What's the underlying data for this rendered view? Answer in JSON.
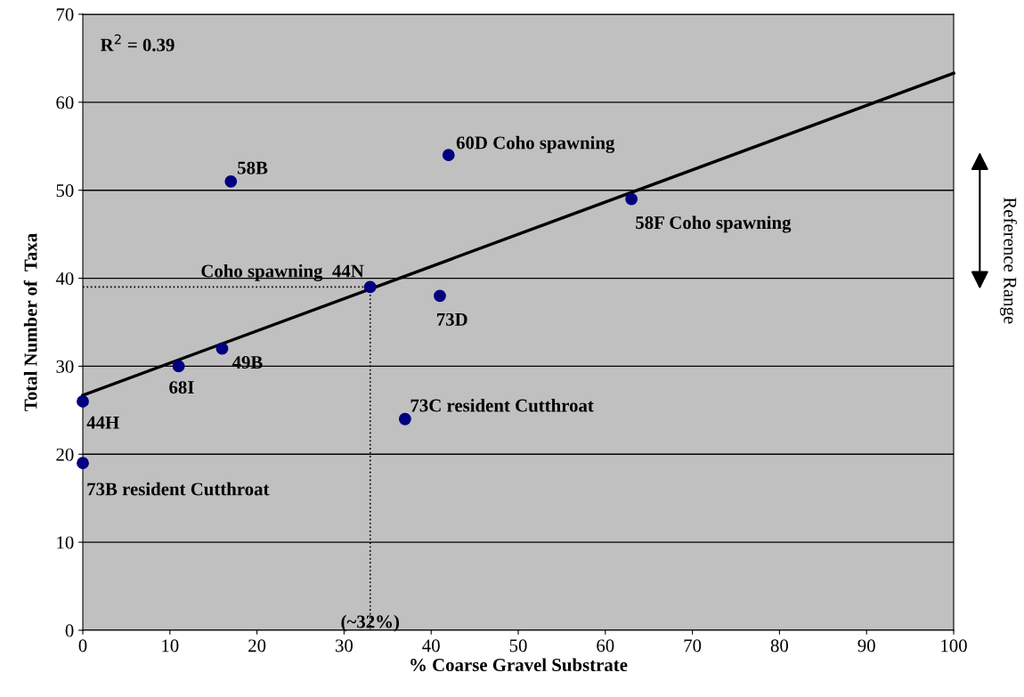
{
  "chart_data": {
    "type": "scatter",
    "xlabel": "% Coarse Gravel Substrate",
    "ylabel": "Total Number of  Taxa",
    "xlim": [
      0,
      100
    ],
    "ylim": [
      0,
      70
    ],
    "xticks": [
      0,
      10,
      20,
      30,
      40,
      50,
      60,
      70,
      80,
      90,
      100
    ],
    "yticks": [
      0,
      10,
      20,
      30,
      40,
      50,
      60,
      70
    ],
    "grid": "y",
    "series": [
      {
        "marker": "circle",
        "color": "#000080",
        "x": [
          0,
          0,
          11,
          16,
          17,
          33,
          37,
          41,
          42,
          63
        ],
        "values": [
          26,
          19,
          30,
          32,
          51,
          39,
          24,
          38,
          54,
          49
        ]
      },
      {
        "type": "line",
        "marker": "none",
        "color": "#000000",
        "x": [
          0,
          100
        ],
        "values": [
          26.7,
          63.3
        ]
      },
      {
        "type": "line",
        "marker": "none",
        "color": "#000000",
        "line_style": "dotted",
        "x": [
          0,
          33,
          33
        ],
        "values": [
          39,
          39,
          0
        ]
      }
    ],
    "annotations": [
      {
        "text": "44H",
        "x": 0,
        "y": 26
      },
      {
        "text": "73B resident Cutthroat",
        "x": 0,
        "y": 19
      },
      {
        "text": "68I",
        "x": 11,
        "y": 30
      },
      {
        "text": "49B",
        "x": 16,
        "y": 32
      },
      {
        "text": "58B",
        "x": 17,
        "y": 51
      },
      {
        "text": "Coho spawning  44N",
        "x": 33,
        "y": 39
      },
      {
        "text": "73C resident Cutthroat",
        "x": 37,
        "y": 24
      },
      {
        "text": "73D",
        "x": 41,
        "y": 38
      },
      {
        "text": "60D Coho spawning",
        "x": 42,
        "y": 54
      },
      {
        "text": "58F Coho spawning",
        "x": 63,
        "y": 49
      },
      {
        "text": "(~32%)",
        "x": 33,
        "y": 0
      },
      "R$^{2}$ = 0.39",
      "Reference Range"
    ]
  }
}
